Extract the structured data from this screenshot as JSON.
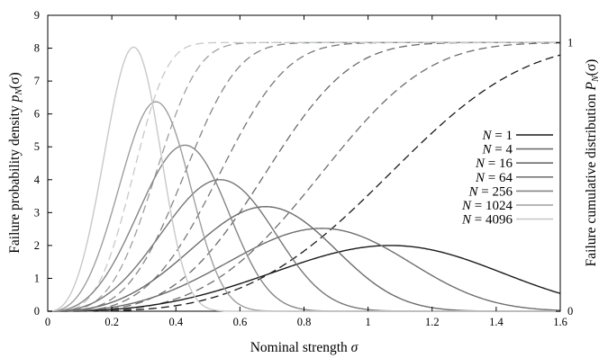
{
  "chart_data": {
    "type": "line",
    "xlabel": {
      "text": "Nominal strength ",
      "symbol": "σ"
    },
    "ylabel_left": {
      "text": "Failure probability density  ",
      "symbol": "p",
      "sub": "N",
      "arg": "(σ)"
    },
    "ylabel_right": {
      "text": "Failure cumulative distribution  ",
      "symbol": "P",
      "sub": "N",
      "arg": "(σ)"
    },
    "xlim": [
      0,
      1.6
    ],
    "ylim_left": [
      0,
      9
    ],
    "ylim_right_cdf": [
      0,
      1
    ],
    "x_ticks": [
      0,
      0.2,
      0.4,
      0.6,
      0.8,
      1,
      1.2,
      1.4,
      1.6
    ],
    "x_tick_labels": [
      "0",
      "0.2",
      "0.4",
      "0.6",
      "0.8",
      "1",
      "1.2",
      "1.4",
      "1.6"
    ],
    "y_ticks_left": [
      0,
      1,
      2,
      3,
      4,
      5,
      6,
      7,
      8,
      9
    ],
    "y_tick_labels_left": [
      "0",
      "1",
      "2",
      "3",
      "4",
      "5",
      "6",
      "7",
      "8",
      "9"
    ],
    "y_ticks_right": [
      0,
      1
    ],
    "y_tick_labels_right": [
      "0",
      "1"
    ],
    "cdf_top_on_left_scale": 8.17,
    "grid": false,
    "legend_position": "right",
    "pdf_style": "solid",
    "cdf_style": "dashed",
    "series": [
      {
        "name": "N = 1",
        "n_label": "N",
        "value_label": " = 1",
        "N": 1,
        "peak_x": 1.07,
        "peak_y": 2.0,
        "color": "#1a1a1a"
      },
      {
        "name": "N = 4",
        "n_label": "N",
        "value_label": " = 4",
        "N": 4,
        "peak_x": 0.855,
        "peak_y": 2.52,
        "color": "#6e6e6e"
      },
      {
        "name": "N = 16",
        "n_label": "N",
        "value_label": " = 16",
        "N": 16,
        "peak_x": 0.68,
        "peak_y": 3.18,
        "color": "#6a6a6a"
      },
      {
        "name": "N = 64",
        "n_label": "N",
        "value_label": " = 64",
        "N": 64,
        "peak_x": 0.538,
        "peak_y": 4.0,
        "color": "#777777"
      },
      {
        "name": "N = 256",
        "n_label": "N",
        "value_label": " = 256",
        "N": 256,
        "peak_x": 0.428,
        "peak_y": 5.05,
        "color": "#858585"
      },
      {
        "name": "N = 1024",
        "n_label": "N",
        "value_label": " = 1024",
        "N": 1024,
        "peak_x": 0.338,
        "peak_y": 6.37,
        "color": "#9f9f9f"
      },
      {
        "name": "N = 4096",
        "n_label": "N",
        "value_label": " = 4096",
        "N": 4096,
        "peak_x": 0.268,
        "peak_y": 8.03,
        "color": "#c8c8c8"
      }
    ],
    "pdf_shape_parameter": 3.6,
    "cdf_top_line_color": "#4a9aa8"
  }
}
